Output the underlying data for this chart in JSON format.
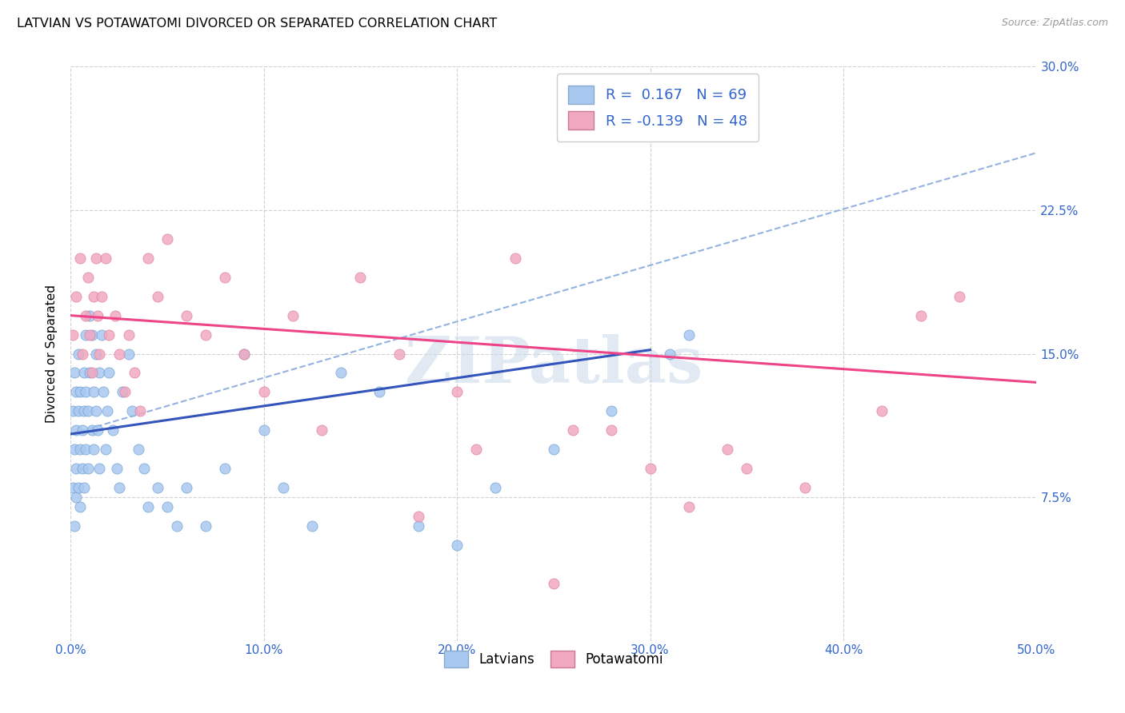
{
  "title": "LATVIAN VS POTAWATOMI DIVORCED OR SEPARATED CORRELATION CHART",
  "source": "Source: ZipAtlas.com",
  "ylabel": "Divorced or Separated",
  "xlim": [
    0.0,
    0.5
  ],
  "ylim": [
    0.0,
    0.3
  ],
  "xtick_vals": [
    0.0,
    0.1,
    0.2,
    0.3,
    0.4,
    0.5
  ],
  "ytick_vals": [
    0.0,
    0.075,
    0.15,
    0.225,
    0.3
  ],
  "ytick_labels": [
    "",
    "7.5%",
    "15.0%",
    "22.5%",
    "30.0%"
  ],
  "xtick_labels": [
    "0.0%",
    "10.0%",
    "20.0%",
    "30.0%",
    "40.0%",
    "50.0%"
  ],
  "legend_latvian_R": "0.167",
  "legend_latvian_N": "69",
  "legend_potawatomi_R": "-0.139",
  "legend_potawatomi_N": "48",
  "color_latvian": "#a8c8f0",
  "color_potawatomi": "#f0a8c0",
  "color_trendline_latvian": "#3355bb",
  "color_trendline_potawatomi": "#ee4488",
  "color_trendline_dashed": "#88aadd",
  "watermark_text": "ZIPatlas",
  "trendline_latvian_y0": 0.108,
  "trendline_latvian_y1": 0.152,
  "trendline_latvian_x0": 0.0,
  "trendline_latvian_x1": 0.3,
  "trendline_dashed_x0": 0.0,
  "trendline_dashed_x1": 0.5,
  "trendline_dashed_y0": 0.108,
  "trendline_dashed_y1": 0.255,
  "trendline_potawatomi_y0": 0.17,
  "trendline_potawatomi_y1": 0.135,
  "trendline_potawatomi_x0": 0.0,
  "trendline_potawatomi_x1": 0.5,
  "latvian_x": [
    0.001,
    0.001,
    0.002,
    0.002,
    0.002,
    0.003,
    0.003,
    0.003,
    0.003,
    0.004,
    0.004,
    0.004,
    0.005,
    0.005,
    0.005,
    0.006,
    0.006,
    0.007,
    0.007,
    0.007,
    0.008,
    0.008,
    0.008,
    0.009,
    0.009,
    0.01,
    0.01,
    0.011,
    0.011,
    0.012,
    0.012,
    0.013,
    0.013,
    0.014,
    0.015,
    0.015,
    0.016,
    0.017,
    0.018,
    0.019,
    0.02,
    0.022,
    0.024,
    0.025,
    0.027,
    0.03,
    0.032,
    0.035,
    0.038,
    0.04,
    0.045,
    0.05,
    0.055,
    0.06,
    0.07,
    0.08,
    0.09,
    0.1,
    0.11,
    0.125,
    0.14,
    0.16,
    0.18,
    0.2,
    0.22,
    0.25,
    0.28,
    0.31,
    0.32
  ],
  "latvian_y": [
    0.12,
    0.08,
    0.1,
    0.06,
    0.14,
    0.11,
    0.075,
    0.13,
    0.09,
    0.12,
    0.08,
    0.15,
    0.1,
    0.13,
    0.07,
    0.11,
    0.09,
    0.14,
    0.12,
    0.08,
    0.16,
    0.13,
    0.1,
    0.12,
    0.09,
    0.17,
    0.14,
    0.16,
    0.11,
    0.13,
    0.1,
    0.15,
    0.12,
    0.11,
    0.09,
    0.14,
    0.16,
    0.13,
    0.1,
    0.12,
    0.14,
    0.11,
    0.09,
    0.08,
    0.13,
    0.15,
    0.12,
    0.1,
    0.09,
    0.07,
    0.08,
    0.07,
    0.06,
    0.08,
    0.06,
    0.09,
    0.15,
    0.11,
    0.08,
    0.06,
    0.14,
    0.13,
    0.06,
    0.05,
    0.08,
    0.1,
    0.12,
    0.15,
    0.16
  ],
  "potawatomi_x": [
    0.001,
    0.003,
    0.005,
    0.006,
    0.008,
    0.009,
    0.01,
    0.011,
    0.012,
    0.013,
    0.014,
    0.015,
    0.016,
    0.018,
    0.02,
    0.023,
    0.025,
    0.028,
    0.03,
    0.033,
    0.036,
    0.04,
    0.045,
    0.05,
    0.06,
    0.07,
    0.08,
    0.09,
    0.1,
    0.115,
    0.13,
    0.15,
    0.17,
    0.2,
    0.23,
    0.26,
    0.3,
    0.34,
    0.38,
    0.42,
    0.46,
    0.28,
    0.32,
    0.21,
    0.25,
    0.35,
    0.18,
    0.44
  ],
  "potawatomi_y": [
    0.16,
    0.18,
    0.2,
    0.15,
    0.17,
    0.19,
    0.16,
    0.14,
    0.18,
    0.2,
    0.17,
    0.15,
    0.18,
    0.2,
    0.16,
    0.17,
    0.15,
    0.13,
    0.16,
    0.14,
    0.12,
    0.2,
    0.18,
    0.21,
    0.17,
    0.16,
    0.19,
    0.15,
    0.13,
    0.17,
    0.11,
    0.19,
    0.15,
    0.13,
    0.2,
    0.11,
    0.09,
    0.1,
    0.08,
    0.12,
    0.18,
    0.11,
    0.07,
    0.1,
    0.03,
    0.09,
    0.065,
    0.17
  ]
}
